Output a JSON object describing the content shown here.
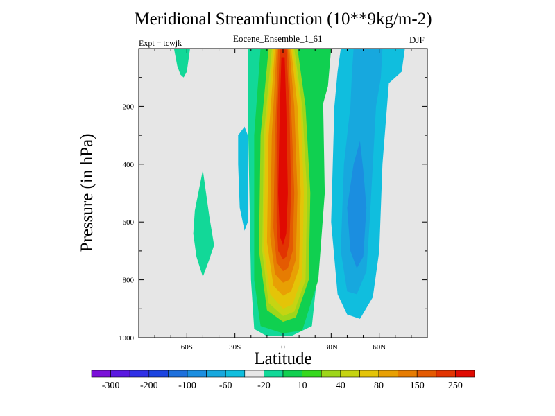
{
  "chart_data": {
    "type": "heatmap",
    "title": "Meridional Streamfunction (10**9kg/m-2)",
    "left_string": "Expt = tcwjk",
    "center_string": "Eocene_Ensemble_1_61",
    "right_string": "DJF",
    "xlabel": "Latitude",
    "ylabel": "Pressure (in hPa)",
    "xlim": [
      -90,
      90
    ],
    "ylim": [
      1000,
      0
    ],
    "y_reversed": true,
    "xticks": [
      {
        "value": -60,
        "label": "60S"
      },
      {
        "value": -30,
        "label": "30S"
      },
      {
        "value": 0,
        "label": "0"
      },
      {
        "value": 30,
        "label": "30N"
      },
      {
        "value": 60,
        "label": "60N"
      }
    ],
    "yticks": [
      {
        "value": 200,
        "label": "200"
      },
      {
        "value": 400,
        "label": "400"
      },
      {
        "value": 600,
        "label": "600"
      },
      {
        "value": 800,
        "label": "800"
      },
      {
        "value": 1000,
        "label": "1000"
      }
    ],
    "colorbar": {
      "labels": [
        "-300",
        "-200",
        "-100",
        "-60",
        "-20",
        "10",
        "40",
        "80",
        "150",
        "250"
      ],
      "colors": [
        "#7a10d8",
        "#5a18e0",
        "#3030e6",
        "#1c44e0",
        "#1e70dc",
        "#1b8ee0",
        "#17a8de",
        "#10bede",
        "#e6e6e6",
        "#12d898",
        "#10d050",
        "#36d81e",
        "#9ed61a",
        "#c6d412",
        "#e4c408",
        "#e8a004",
        "#e67c02",
        "#e45a02",
        "#e23402",
        "#e00a02"
      ]
    },
    "contour_regions": [
      {
        "name": "tropical-cell-outer",
        "level": "10",
        "color": "#12d898",
        "points": [
          [
            -22,
            0
          ],
          [
            25,
            0
          ],
          [
            23,
            200
          ],
          [
            22,
            500
          ],
          [
            21,
            800
          ],
          [
            18,
            960
          ],
          [
            5,
            995
          ],
          [
            -10,
            995
          ],
          [
            -18,
            970
          ],
          [
            -20,
            800
          ],
          [
            -21,
            500
          ],
          [
            -22,
            200
          ]
        ]
      },
      {
        "name": "green-north-arm",
        "level": "40",
        "color": "#10d050",
        "points": [
          [
            12,
            0
          ],
          [
            30,
            0
          ],
          [
            28,
            130
          ],
          [
            25,
            190
          ],
          [
            26,
            500
          ],
          [
            22,
            800
          ],
          [
            12,
            975
          ],
          [
            0,
            985
          ],
          [
            -14,
            960
          ],
          [
            -18,
            800
          ],
          [
            -18,
            300
          ],
          [
            -14,
            0
          ]
        ]
      },
      {
        "name": "green-central",
        "level": "40",
        "color": "#10d050",
        "points": [
          [
            -14,
            0
          ],
          [
            12,
            0
          ],
          [
            18,
            200
          ],
          [
            20,
            500
          ],
          [
            18,
            820
          ],
          [
            10,
            950
          ],
          [
            0,
            965
          ],
          [
            -12,
            930
          ],
          [
            -17,
            700
          ],
          [
            -17,
            300
          ]
        ]
      },
      {
        "name": "lime-core",
        "level": "80",
        "color": "#9ed61a",
        "points": [
          [
            -9,
            0
          ],
          [
            9,
            0
          ],
          [
            14,
            200
          ],
          [
            17,
            500
          ],
          [
            16,
            800
          ],
          [
            8,
            930
          ],
          [
            0,
            945
          ],
          [
            -10,
            905
          ],
          [
            -15,
            700
          ],
          [
            -14,
            300
          ]
        ]
      },
      {
        "name": "yellow-core",
        "level": "150",
        "color": "#c6d412",
        "points": [
          [
            -7,
            0
          ],
          [
            7,
            0
          ],
          [
            12,
            200
          ],
          [
            15,
            500
          ],
          [
            14,
            800
          ],
          [
            7,
            910
          ],
          [
            0,
            925
          ],
          [
            -9,
            880
          ],
          [
            -13,
            700
          ],
          [
            -12,
            300
          ]
        ]
      },
      {
        "name": "gold-core",
        "level": "150",
        "color": "#e4c408",
        "points": [
          [
            -6,
            0
          ],
          [
            6,
            0
          ],
          [
            11,
            200
          ],
          [
            13,
            500
          ],
          [
            12,
            790
          ],
          [
            6,
            885
          ],
          [
            0,
            900
          ],
          [
            -8,
            850
          ],
          [
            -12,
            690
          ],
          [
            -11,
            300
          ]
        ]
      },
      {
        "name": "orange1-core",
        "level": "150",
        "color": "#e8a004",
        "points": [
          [
            -5,
            0
          ],
          [
            5,
            0
          ],
          [
            9,
            200
          ],
          [
            11,
            500
          ],
          [
            10,
            760
          ],
          [
            5,
            840
          ],
          [
            0,
            855
          ],
          [
            -6,
            820
          ],
          [
            -10,
            670
          ],
          [
            -9,
            300
          ]
        ]
      },
      {
        "name": "orange2-core",
        "level": "250",
        "color": "#e67c02",
        "points": [
          [
            -4,
            0
          ],
          [
            4,
            0
          ],
          [
            7,
            200
          ],
          [
            9,
            500
          ],
          [
            8,
            730
          ],
          [
            4,
            800
          ],
          [
            0,
            810
          ],
          [
            -5,
            780
          ],
          [
            -8,
            650
          ],
          [
            -7,
            300
          ]
        ]
      },
      {
        "name": "red-orange-core",
        "level": "250",
        "color": "#e45a02",
        "points": [
          [
            -3,
            0
          ],
          [
            3,
            0
          ],
          [
            5,
            200
          ],
          [
            7,
            500
          ],
          [
            6,
            700
          ],
          [
            3,
            760
          ],
          [
            0,
            770
          ],
          [
            -4,
            740
          ],
          [
            -6,
            620
          ],
          [
            -5,
            300
          ]
        ]
      },
      {
        "name": "red1-core",
        "level": "250",
        "color": "#e23402",
        "points": [
          [
            -2,
            0
          ],
          [
            2,
            0
          ],
          [
            4,
            200
          ],
          [
            5,
            500
          ],
          [
            4,
            670
          ],
          [
            2,
            720
          ],
          [
            0,
            730
          ],
          [
            -3,
            700
          ],
          [
            -4,
            600
          ],
          [
            -4,
            300
          ]
        ]
      },
      {
        "name": "red2-core",
        "level": "250",
        "color": "#e00a02",
        "points": [
          [
            -1,
            30
          ],
          [
            1,
            30
          ],
          [
            2,
            200
          ],
          [
            3,
            500
          ],
          [
            2,
            640
          ],
          [
            0,
            680
          ],
          [
            -2,
            650
          ],
          [
            -3,
            500
          ],
          [
            -2,
            200
          ]
        ]
      },
      {
        "name": "north-negative-outer",
        "level": "-20",
        "color": "#10bede",
        "points": [
          [
            36,
            0
          ],
          [
            76,
            0
          ],
          [
            74,
            80
          ],
          [
            66,
            120
          ],
          [
            62,
            400
          ],
          [
            60,
            700
          ],
          [
            56,
            860
          ],
          [
            48,
            935
          ],
          [
            40,
            920
          ],
          [
            34,
            850
          ],
          [
            30,
            600
          ],
          [
            32,
            200
          ],
          [
            34,
            80
          ]
        ]
      },
      {
        "name": "north-negative-mid",
        "level": "-20",
        "color": "#17a8de",
        "points": [
          [
            44,
            0
          ],
          [
            62,
            0
          ],
          [
            61,
            100
          ],
          [
            58,
            200
          ],
          [
            56,
            400
          ],
          [
            54,
            600
          ],
          [
            52,
            770
          ],
          [
            46,
            850
          ],
          [
            40,
            840
          ],
          [
            36,
            700
          ],
          [
            38,
            400
          ],
          [
            42,
            200
          ],
          [
            43,
            80
          ]
        ]
      },
      {
        "name": "north-negative-core",
        "level": "-60",
        "color": "#1b8ee0",
        "points": [
          [
            48,
            320
          ],
          [
            50,
            420
          ],
          [
            52,
            550
          ],
          [
            50,
            720
          ],
          [
            46,
            760
          ],
          [
            42,
            700
          ],
          [
            40,
            550
          ],
          [
            44,
            400
          ]
        ]
      },
      {
        "name": "sh-cell-top",
        "level": "10",
        "color": "#12d898",
        "points": [
          [
            -68,
            0
          ],
          [
            -58,
            0
          ],
          [
            -60,
            80
          ],
          [
            -62,
            100
          ],
          [
            -64,
            90
          ],
          [
            -66,
            60
          ]
        ]
      },
      {
        "name": "sh-cell-mid",
        "level": "10",
        "color": "#12d898",
        "points": [
          [
            -50,
            420
          ],
          [
            -46,
            580
          ],
          [
            -43,
            680
          ],
          [
            -46,
            730
          ],
          [
            -50,
            790
          ],
          [
            -54,
            720
          ],
          [
            -56,
            640
          ],
          [
            -55,
            560
          ]
        ]
      },
      {
        "name": "sh-negative",
        "level": "-20",
        "color": "#10bede",
        "points": [
          [
            -24,
            270
          ],
          [
            -22,
            300
          ],
          [
            -22,
            420
          ],
          [
            -22,
            600
          ],
          [
            -24,
            630
          ],
          [
            -27,
            550
          ],
          [
            -28,
            400
          ],
          [
            -28,
            300
          ]
        ]
      }
    ]
  }
}
